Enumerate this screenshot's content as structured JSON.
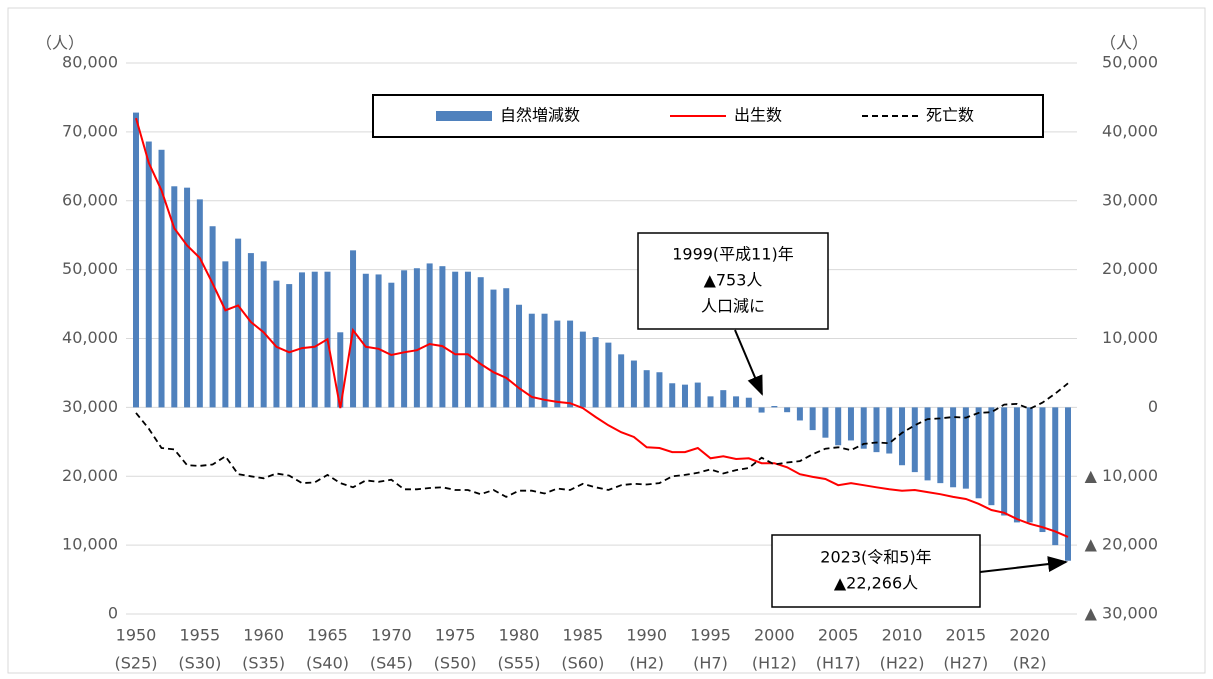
{
  "chart_data": {
    "type": "bar",
    "y_unit_label": "（人）",
    "y2_unit_label": "（人）",
    "categories": [
      "1950",
      null,
      null,
      null,
      null,
      "1955",
      null,
      null,
      null,
      null,
      "1960",
      null,
      null,
      null,
      null,
      "1965",
      null,
      null,
      null,
      null,
      "1970",
      null,
      null,
      null,
      null,
      "1975",
      null,
      null,
      null,
      null,
      "1980",
      null,
      null,
      null,
      null,
      "1985",
      null,
      null,
      null,
      null,
      "1990",
      null,
      null,
      null,
      null,
      "1995",
      null,
      null,
      null,
      null,
      "2000",
      null,
      null,
      null,
      null,
      "2005",
      null,
      null,
      null,
      null,
      "2010",
      null,
      null,
      null,
      null,
      "2015",
      null,
      null,
      null,
      null,
      "2020",
      null,
      null,
      null
    ],
    "category_eras": [
      "(S25)",
      null,
      null,
      null,
      null,
      "(S30)",
      null,
      null,
      null,
      null,
      "(S35)",
      null,
      null,
      null,
      null,
      "(S40)",
      null,
      null,
      null,
      null,
      "(S45)",
      null,
      null,
      null,
      null,
      "(S50)",
      null,
      null,
      null,
      null,
      "(S55)",
      null,
      null,
      null,
      null,
      "(S60)",
      null,
      null,
      null,
      null,
      "(H2)",
      null,
      null,
      null,
      null,
      "(H7)",
      null,
      null,
      null,
      null,
      "(H12)",
      null,
      null,
      null,
      null,
      "(H17)",
      null,
      null,
      null,
      null,
      "(H22)",
      null,
      null,
      null,
      null,
      "(H27)",
      null,
      null,
      null,
      null,
      "(R2)",
      null,
      null,
      null
    ],
    "series": [
      {
        "name": "自然増減数",
        "type": "bar",
        "axis": "y2",
        "color": "#4f81bd",
        "values": [
          42800,
          38600,
          37400,
          32100,
          31900,
          30200,
          26300,
          21200,
          24500,
          22400,
          21200,
          18400,
          17900,
          19600,
          19700,
          19700,
          10900,
          22800,
          19400,
          19300,
          18100,
          19900,
          20200,
          20900,
          20500,
          19700,
          19700,
          18900,
          17100,
          17300,
          14900,
          13600,
          13600,
          12600,
          12600,
          11000,
          10200,
          9400,
          7700,
          6800,
          5400,
          5100,
          3500,
          3300,
          3600,
          1600,
          2500,
          1600,
          1400,
          -753,
          200,
          -700,
          -1900,
          -3300,
          -4400,
          -5500,
          -4800,
          -6000,
          -6500,
          -6700,
          -8400,
          -9400,
          -10600,
          -11000,
          -11600,
          -11800,
          -13200,
          -14200,
          -15700,
          -16700,
          -16700,
          -18100,
          -20000,
          -22266
        ]
      },
      {
        "name": "出生数",
        "type": "line",
        "color": "#ff0000",
        "dashed": false,
        "values": [
          72000,
          65500,
          61500,
          56000,
          53500,
          51700,
          48000,
          44100,
          44800,
          42400,
          40900,
          38800,
          38000,
          38600,
          38800,
          39900,
          29900,
          41200,
          38800,
          38500,
          37600,
          38000,
          38300,
          39200,
          38900,
          37700,
          37700,
          36300,
          35100,
          34300,
          32800,
          31500,
          31100,
          30800,
          30600,
          29900,
          28600,
          27400,
          26400,
          25700,
          24200,
          24100,
          23500,
          23500,
          24100,
          22600,
          22900,
          22500,
          22600,
          21900,
          21900,
          21300,
          20300,
          19900,
          19600,
          18700,
          19000,
          18700,
          18400,
          18100,
          17900,
          18000,
          17700,
          17400,
          17000,
          16700,
          16000,
          15100,
          14700,
          13800,
          13100,
          12600,
          12000,
          11200
        ]
      },
      {
        "name": "死亡数",
        "type": "line",
        "color": "#000000",
        "dashed": true,
        "values": [
          29200,
          26900,
          24100,
          23900,
          21600,
          21500,
          21700,
          22900,
          20300,
          20000,
          19700,
          20400,
          20100,
          19000,
          19100,
          20200,
          19000,
          18400,
          19400,
          19200,
          19500,
          18100,
          18100,
          18300,
          18400,
          18000,
          18000,
          17400,
          18000,
          17000,
          17900,
          17900,
          17500,
          18200,
          18000,
          18900,
          18400,
          18000,
          18700,
          18900,
          18800,
          19000,
          20000,
          20200,
          20500,
          21000,
          20400,
          20900,
          21200,
          22700,
          21700,
          22000,
          22200,
          23200,
          24000,
          24200,
          23800,
          24700,
          24900,
          24800,
          26300,
          27400,
          28300,
          28400,
          28600,
          28500,
          29200,
          29300,
          30400,
          30500,
          29800,
          30700,
          32000,
          33500
        ]
      }
    ],
    "ylim": [
      0,
      80000
    ],
    "yticks": [
      0,
      {
        "value": 10000,
        "label": "10,000"
      },
      {
        "value": 20000,
        "label": "20,000"
      },
      {
        "value": 30000,
        "label": "30,000"
      },
      {
        "value": 40000,
        "label": "40,000"
      },
      {
        "value": 50000,
        "label": "50,000"
      },
      {
        "value": 60000,
        "label": "60,000"
      },
      {
        "value": 70000,
        "label": "70,000"
      },
      {
        "value": 80000,
        "label": "80,000"
      }
    ],
    "y2lim": [
      -30000,
      50000
    ],
    "y2ticks": [
      {
        "value": -30000,
        "label": "▲ 30,000"
      },
      {
        "value": -20000,
        "label": "▲ 20,000"
      },
      {
        "value": -10000,
        "label": "▲ 10,000"
      },
      0,
      {
        "value": 10000,
        "label": "10,000"
      },
      {
        "value": 20000,
        "label": "20,000"
      },
      {
        "value": 30000,
        "label": "30,000"
      },
      {
        "value": 40000,
        "label": "40,000"
      },
      {
        "value": 50000,
        "label": "50,000"
      }
    ],
    "grid": true,
    "legend": "top",
    "annotations": [
      {
        "lines": [
          "1999(平成11)年",
          "▲753人",
          "人口減に"
        ]
      },
      {
        "lines": [
          "2023(令和5)年",
          "▲22,266人"
        ]
      }
    ]
  }
}
